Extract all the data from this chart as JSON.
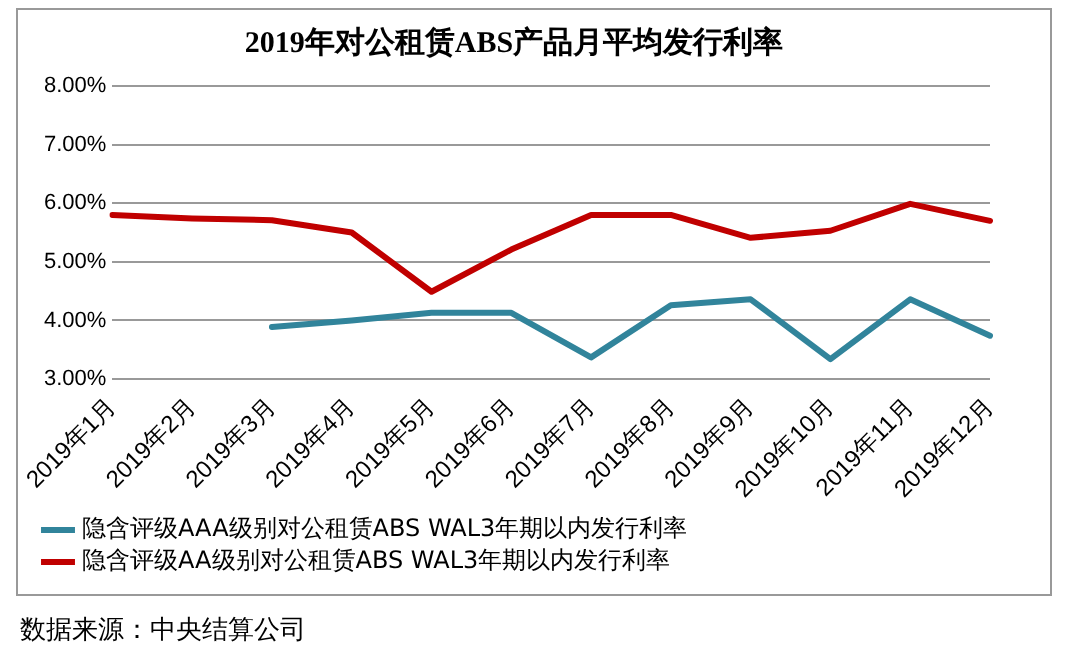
{
  "chart_data": {
    "type": "line",
    "title": "2019年对公租赁ABS产品月平均发行利率",
    "categories": [
      "2019年1月",
      "2019年2月",
      "2019年3月",
      "2019年4月",
      "2019年5月",
      "2019年6月",
      "2019年7月",
      "2019年8月",
      "2019年9月",
      "2019年10月",
      "2019年11月",
      "2019年12月"
    ],
    "series": [
      {
        "name": "隐含评级AAA级别对公租赁ABS WAL3年期以内发行利率",
        "color": "#31849b",
        "values": [
          null,
          null,
          3.89,
          4.0,
          4.13,
          4.13,
          3.37,
          4.26,
          4.36,
          3.34,
          4.36,
          3.74
        ]
      },
      {
        "name": "隐含评级AA级别对公租赁ABS WAL3年期以内发行利率",
        "color": "#c00000",
        "values": [
          5.8,
          5.74,
          5.71,
          5.5,
          4.49,
          5.21,
          5.8,
          5.8,
          5.41,
          5.53,
          5.99,
          5.7
        ]
      }
    ],
    "ylim": [
      3,
      8
    ],
    "yticks": [
      {
        "value": 3,
        "label": "3.00%"
      },
      {
        "value": 4,
        "label": "4.00%"
      },
      {
        "value": 5,
        "label": "5.00%"
      },
      {
        "value": 6,
        "label": "6.00%"
      },
      {
        "value": 7,
        "label": "7.00%"
      },
      {
        "value": 8,
        "label": "8.00%"
      }
    ],
    "grid": "y",
    "legend": "bottom",
    "marker": "none",
    "line_style": "solid",
    "annotations": [
      "数据来源：中央结算公司"
    ]
  }
}
